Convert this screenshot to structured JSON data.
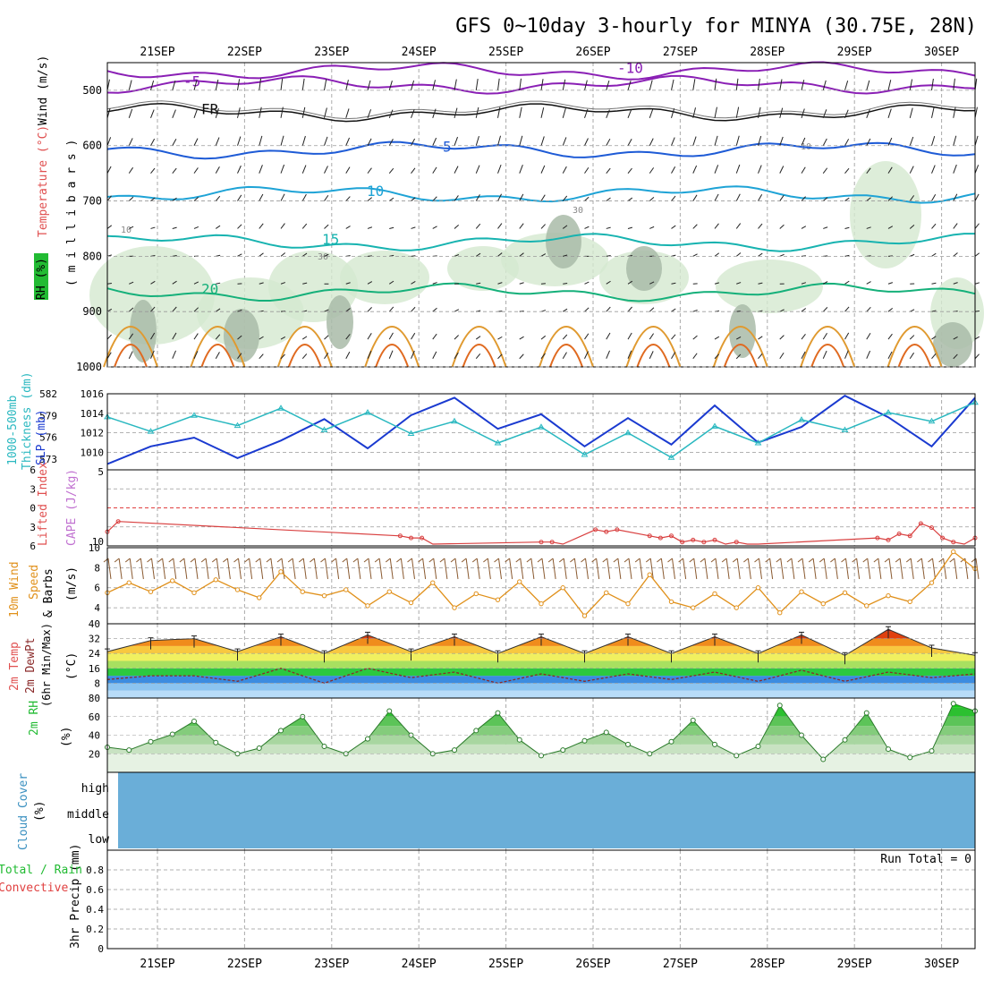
{
  "chart_data": {
    "title": "GFS 0~10day 3-hourly for MINYA (30.75E, 28N)",
    "date_ticks": [
      "21SEP",
      "22SEP",
      "23SEP",
      "24SEP",
      "25SEP",
      "26SEP",
      "27SEP",
      "28SEP",
      "29SEP",
      "30SEP"
    ],
    "panels": [
      {
        "id": "upper_air",
        "type": "contour",
        "ylabel_lines": [
          "RH (%)",
          "Temperature (°C)",
          "Wind (m/s)",
          "( m i l l i b a r s )"
        ],
        "yticks": [
          500,
          600,
          700,
          800,
          900,
          1000
        ],
        "temperature_contours": [
          {
            "label": "-10",
            "level_mb": 465
          },
          {
            "label": "-5",
            "level_mb": 490
          },
          {
            "label": "FR",
            "level_mb": 540
          },
          {
            "label": "5",
            "level_mb": 608
          },
          {
            "label": "10",
            "level_mb": 688
          },
          {
            "label": "15",
            "level_mb": 775
          },
          {
            "label": "20",
            "level_mb": 865
          }
        ],
        "rh_label_values": [
          "10",
          "30",
          "30",
          "10"
        ]
      },
      {
        "id": "thickness_slp",
        "type": "line",
        "ylabel_lines": [
          "1000-500mb",
          "Thickness (dm)",
          "SLP (mb)"
        ],
        "left_ticks": [
          573,
          576,
          579,
          582
        ],
        "left_range": [
          571.5,
          582
        ],
        "right_ticks": [
          1010,
          1012,
          1014,
          1016
        ],
        "right_range": [
          1008.2,
          1016
        ],
        "series": [
          {
            "axis": "right",
            "x": [
              0,
              4,
              8,
              12,
              16,
              20,
              24,
              28,
              32,
              36,
              40,
              44,
              48,
              52,
              56,
              60,
              64,
              68,
              72,
              76,
              80
            ],
            "values": [
              1008.8,
              1010.6,
              1011.5,
              1009.4,
              1011.2,
              1013.4,
              1010.4,
              1013.8,
              1015.6,
              1012.4,
              1013.9,
              1010.6,
              1013.5,
              1010.8,
              1014.8,
              1011.0,
              1012.6,
              1015.8,
              1013.6,
              1010.6,
              1015.6
            ]
          },
          {
            "axis": "left",
            "x": [
              0,
              4,
              8,
              12,
              16,
              20,
              24,
              28,
              32,
              36,
              40,
              44,
              48,
              52,
              56,
              60,
              64,
              68,
              72,
              76,
              80
            ],
            "values": [
              578.8,
              576.8,
              579.0,
              577.6,
              580.0,
              577.0,
              579.4,
              576.5,
              578.2,
              575.2,
              577.4,
              573.6,
              576.6,
              573.2,
              577.5,
              575.2,
              578.4,
              577.0,
              579.4,
              578.2,
              580.8
            ]
          }
        ]
      },
      {
        "id": "lifted_cape",
        "type": "line",
        "ylabel_lines": [
          "Lifted Index",
          "CAPE (J/kg)"
        ],
        "left_ticks": [
          -6,
          -3,
          0,
          3,
          6
        ],
        "right_ticks": [
          5,
          10
        ],
        "series": [
          {
            "name": "CAPE",
            "x": [
              0,
              1,
              27,
              28,
              29,
              30,
              40,
              41,
              42,
              45,
              46,
              47,
              50,
              51,
              52,
              53,
              54,
              55,
              56,
              57,
              58,
              59,
              60,
              71,
              72,
              73,
              74,
              75,
              76,
              77,
              78,
              79,
              80
            ],
            "values": [
              6,
              11,
              4,
              3,
              3,
              0,
              1,
              1,
              0,
              7,
              6,
              7,
              4,
              3,
              4,
              1,
              2,
              1,
              2,
              0,
              1,
              0,
              0,
              3,
              2,
              5,
              4,
              10,
              8,
              3,
              1,
              0,
              3
            ]
          }
        ]
      },
      {
        "id": "wind10m",
        "type": "line",
        "ylabel_lines": [
          "10m Wind",
          "Speed",
          "& Barbs",
          "(m/s)"
        ],
        "yticks": [
          4,
          6,
          8,
          10
        ],
        "ylim": [
          2.4,
          10
        ],
        "series": [
          {
            "name": "Speed",
            "x": [
              0,
              2,
              4,
              6,
              8,
              10,
              12,
              14,
              16,
              18,
              20,
              22,
              24,
              26,
              28,
              30,
              32,
              34,
              36,
              38,
              40,
              42,
              44,
              46,
              48,
              50,
              52,
              54,
              56,
              58,
              60,
              62,
              64,
              66,
              68,
              70,
              72,
              74,
              76,
              78,
              80
            ],
            "values": [
              5.5,
              6.5,
              5.6,
              6.7,
              5.5,
              6.8,
              5.8,
              5.0,
              7.6,
              5.6,
              5.2,
              5.8,
              4.2,
              5.6,
              4.5,
              6.5,
              4.0,
              5.4,
              4.8,
              6.6,
              4.4,
              6.0,
              3.2,
              5.5,
              4.4,
              7.3,
              4.6,
              4.0,
              5.4,
              4.0,
              6.0,
              3.5,
              5.6,
              4.4,
              5.5,
              4.2,
              5.2,
              4.6,
              6.5,
              9.6,
              7.9
            ]
          }
        ]
      },
      {
        "id": "temp2m",
        "type": "area",
        "ylabel_lines": [
          "2m Temp",
          "2m DewPt",
          "(6hr Min/Max)",
          "(°C)"
        ],
        "yticks": [
          8,
          16,
          24,
          32,
          40
        ],
        "ylim": [
          0,
          40
        ],
        "series": [
          {
            "name": "Temp",
            "x": [
              0,
              4,
              8,
              12,
              16,
              20,
              24,
              28,
              32,
              36,
              40,
              44,
              48,
              52,
              56,
              60,
              64,
              68,
              72,
              76,
              80
            ],
            "values": [
              25,
              31,
              32,
              25,
              33,
              24,
              34,
              25,
              33,
              24,
              33,
              24,
              33,
              24,
              33,
              24,
              34,
              23,
              37,
              27,
              23
            ]
          },
          {
            "name": "DewPt",
            "x": [
              0,
              4,
              8,
              12,
              16,
              20,
              24,
              28,
              32,
              36,
              40,
              44,
              48,
              52,
              56,
              60,
              64,
              68,
              72,
              76,
              80
            ],
            "values": [
              10,
              12,
              12,
              9,
              16,
              8,
              16,
              11,
              14,
              8,
              13,
              9,
              13,
              10,
              14,
              9,
              15,
              9,
              14,
              11,
              13
            ]
          }
        ]
      },
      {
        "id": "rh2m",
        "type": "area",
        "ylabel_lines": [
          "2m RH",
          "(%)"
        ],
        "yticks": [
          20,
          40,
          60,
          80
        ],
        "ylim": [
          0,
          80
        ],
        "series": [
          {
            "name": "RH",
            "x": [
              0,
              2,
              4,
              6,
              8,
              10,
              12,
              14,
              16,
              18,
              20,
              22,
              24,
              26,
              28,
              30,
              32,
              34,
              36,
              38,
              40,
              42,
              44,
              46,
              48,
              50,
              52,
              54,
              56,
              58,
              60,
              62,
              64,
              66,
              68,
              70,
              72,
              74,
              76,
              78,
              80
            ],
            "values": [
              27,
              24,
              33,
              41,
              55,
              32,
              20,
              26,
              45,
              60,
              28,
              20,
              36,
              66,
              40,
              20,
              24,
              45,
              64,
              35,
              18,
              24,
              34,
              43,
              30,
              20,
              33,
              56,
              30,
              18,
              28,
              72,
              40,
              14,
              35,
              64,
              25,
              16,
              23,
              74,
              66
            ]
          }
        ]
      },
      {
        "id": "cloud",
        "type": "heatmap",
        "ylabel_lines": [
          "Cloud Cover",
          "(%)"
        ],
        "row_labels": [
          "high",
          "middle",
          "low"
        ]
      },
      {
        "id": "precip",
        "type": "bar",
        "ylabel_lines": [
          "3hr Precip (mm)",
          "Total / Rain",
          "Convective"
        ],
        "yticks": [
          0,
          0.2,
          0.4,
          0.6,
          0.8
        ],
        "ylim": [
          0,
          1.0
        ],
        "run_total": "Run Total = 0"
      }
    ]
  }
}
